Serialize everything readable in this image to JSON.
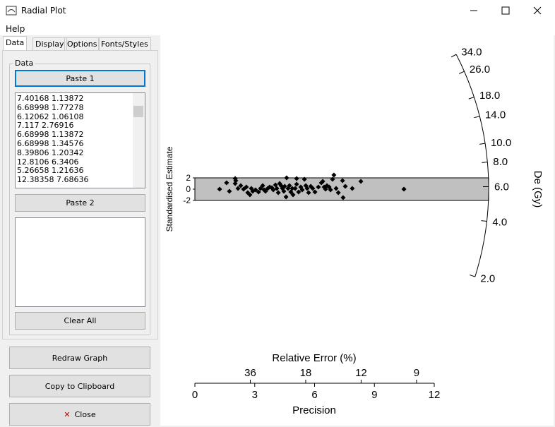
{
  "window": {
    "title": "Radial Plot",
    "menu": [
      "Help"
    ]
  },
  "tabs": [
    "Data",
    "Display",
    "Options",
    "Fonts/Styles"
  ],
  "data_group": {
    "label": "Data",
    "paste1": "Paste 1",
    "paste2": "Paste 2",
    "clear": "Clear All",
    "list": [
      "7.40168 1.13872",
      "6.68998 1.77278",
      "6.12062 1.06108",
      "7.117 2.76916",
      "6.68998 1.13872",
      "6.68998 1.34576",
      "8.39806 1.20342",
      "12.8106 6.3406",
      "5.26658 1.21636",
      "12.38358 7.68636"
    ]
  },
  "buttons": {
    "redraw": "Redraw Graph",
    "copy": "Copy to Clipboard",
    "close": "Close"
  },
  "chart_data": {
    "type": "radial",
    "y_label": "Standardised Estimate",
    "x_label": "Precision",
    "x2_label": "Relative Error (%)",
    "arc_label": "De (Gy)",
    "xlim": [
      0,
      12
    ],
    "xticks": [
      0,
      3,
      6,
      9,
      12
    ],
    "x2ticks": [
      36,
      18,
      12,
      9
    ],
    "ylim": [
      -2,
      2
    ],
    "yticks": [
      2,
      0,
      -2
    ],
    "arclim": [
      2.0,
      34.0
    ],
    "arcticks": [
      {
        "value": 34.0,
        "label": "34.0"
      },
      {
        "value": 26.0,
        "label": "26.0"
      },
      {
        "value": 18.0,
        "label": "18.0"
      },
      {
        "value": 14.0,
        "label": "14.0"
      },
      {
        "value": 10.0,
        "label": "10.0"
      },
      {
        "value": 8.0,
        "label": "8.0"
      },
      {
        "value": 6.0,
        "label": "6.0"
      },
      {
        "value": 4.0,
        "label": "4.0"
      },
      {
        "value": 2.0,
        "label": "2.0"
      }
    ],
    "band_color": "#c0c0c0",
    "color": "#000000",
    "x": [
      1.24,
      1.59,
      1.73,
      2.02,
      2.05,
      2.02,
      2.16,
      2.3,
      2.44,
      2.58,
      2.65,
      2.76,
      2.83,
      2.9,
      3.04,
      3.19,
      3.29,
      3.4,
      3.47,
      3.54,
      3.65,
      3.75,
      3.86,
      3.93,
      4.04,
      4.11,
      4.18,
      4.25,
      4.32,
      4.39,
      4.46,
      4.5,
      4.57,
      4.6,
      4.67,
      4.74,
      4.81,
      4.88,
      4.92,
      5.03,
      5.1,
      5.1,
      5.2,
      5.31,
      5.38,
      5.49,
      5.56,
      5.63,
      5.7,
      5.81,
      5.91,
      6.02,
      6.19,
      6.34,
      6.41,
      6.48,
      6.55,
      6.62,
      6.73,
      6.8,
      6.9,
      6.97,
      7.08,
      7.19,
      7.4,
      7.43,
      7.54,
      7.89,
      8.32,
      10.48
    ],
    "values": [
      0,
      1.13,
      -0.38,
      1.88,
      1.5,
      1.0,
      0.13,
      0.63,
      0,
      0.38,
      -0.63,
      -1.0,
      0.13,
      -0.38,
      -0.13,
      -0.5,
      0.13,
      0.63,
      -0.13,
      -0.38,
      0.13,
      0.38,
      0.25,
      -0.13,
      0.75,
      0.13,
      -0.63,
      1.0,
      0.63,
      0.13,
      -0.38,
      0.5,
      -1.38,
      2.0,
      0.13,
      0.63,
      -0.5,
      0.13,
      -1.0,
      0.13,
      0.88,
      1.88,
      -0.5,
      0.38,
      -0.13,
      1.75,
      0.63,
      0.13,
      -0.63,
      0.5,
      0.13,
      -0.5,
      0.38,
      1.13,
      1.38,
      0.38,
      0,
      0.63,
      0.38,
      -0.13,
      1.75,
      2.5,
      0.13,
      -0.63,
      1.5,
      -1.5,
      0.5,
      0.13,
      1.38,
      0
    ]
  }
}
